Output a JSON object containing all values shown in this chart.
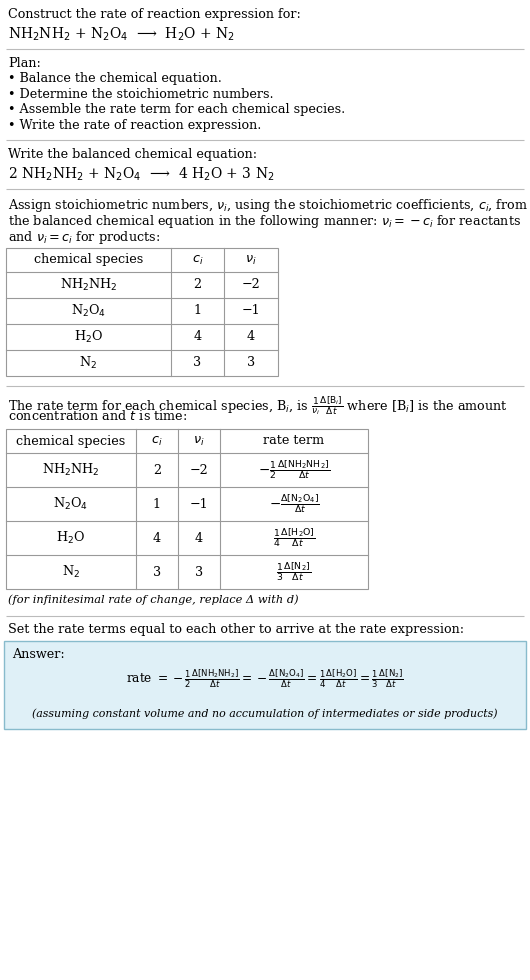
{
  "title_line1": "Construct the rate of reaction expression for:",
  "reaction_unbalanced": "NH$_2$NH$_2$ + N$_2$O$_4$  ⟶  H$_2$O + N$_2$",
  "plan_header": "Plan:",
  "plan_items": [
    "• Balance the chemical equation.",
    "• Determine the stoichiometric numbers.",
    "• Assemble the rate term for each chemical species.",
    "• Write the rate of reaction expression."
  ],
  "balanced_header": "Write the balanced chemical equation:",
  "reaction_balanced": "2 NH$_2$NH$_2$ + N$_2$O$_4$  ⟶  4 H$_2$O + 3 N$_2$",
  "stoich_intro_lines": [
    "Assign stoichiometric numbers, $\\nu_i$, using the stoichiometric coefficients, $c_i$, from",
    "the balanced chemical equation in the following manner: $\\nu_i = -c_i$ for reactants",
    "and $\\nu_i = c_i$ for products:"
  ],
  "table1_headers": [
    "chemical species",
    "$c_i$",
    "$\\nu_i$"
  ],
  "table1_rows": [
    [
      "NH$_2$NH$_2$",
      "2",
      "−2"
    ],
    [
      "N$_2$O$_4$",
      "1",
      "−1"
    ],
    [
      "H$_2$O",
      "4",
      "4"
    ],
    [
      "N$_2$",
      "3",
      "3"
    ]
  ],
  "rate_intro_lines": [
    "The rate term for each chemical species, B$_i$, is $\\frac{1}{\\nu_i}\\frac{\\Delta[\\mathrm{B}_i]}{\\Delta t}$ where [B$_i$] is the amount",
    "concentration and $t$ is time:"
  ],
  "table2_headers": [
    "chemical species",
    "$c_i$",
    "$\\nu_i$",
    "rate term"
  ],
  "table2_rows": [
    [
      "NH$_2$NH$_2$",
      "2",
      "−2",
      "$-\\frac{1}{2}\\frac{\\Delta[\\mathrm{NH_2NH_2}]}{\\Delta t}$"
    ],
    [
      "N$_2$O$_4$",
      "1",
      "−1",
      "$-\\frac{\\Delta[\\mathrm{N_2O_4}]}{\\Delta t}$"
    ],
    [
      "H$_2$O",
      "4",
      "4",
      "$\\frac{1}{4}\\frac{\\Delta[\\mathrm{H_2O}]}{\\Delta t}$"
    ],
    [
      "N$_2$",
      "3",
      "3",
      "$\\frac{1}{3}\\frac{\\Delta[\\mathrm{N_2}]}{\\Delta t}$"
    ]
  ],
  "infinitesimal_note": "(for infinitesimal rate of change, replace Δ with d)",
  "set_rate_header": "Set the rate terms equal to each other to arrive at the rate expression:",
  "answer_label": "Answer:",
  "answer_rate": "rate $= -\\frac{1}{2}\\frac{\\Delta[\\mathrm{NH_2NH_2}]}{\\Delta t} = -\\frac{\\Delta[\\mathrm{N_2O_4}]}{\\Delta t} = \\frac{1}{4}\\frac{\\Delta[\\mathrm{H_2O}]}{\\Delta t} = \\frac{1}{3}\\frac{\\Delta[\\mathrm{N_2}]}{\\Delta t}$",
  "answer_note": "(assuming constant volume and no accumulation of intermediates or side products)",
  "bg_color": "#ffffff",
  "text_color": "#000000",
  "table_line_color": "#999999",
  "answer_box_bg": "#dff0f7",
  "answer_box_border": "#88bbcc"
}
